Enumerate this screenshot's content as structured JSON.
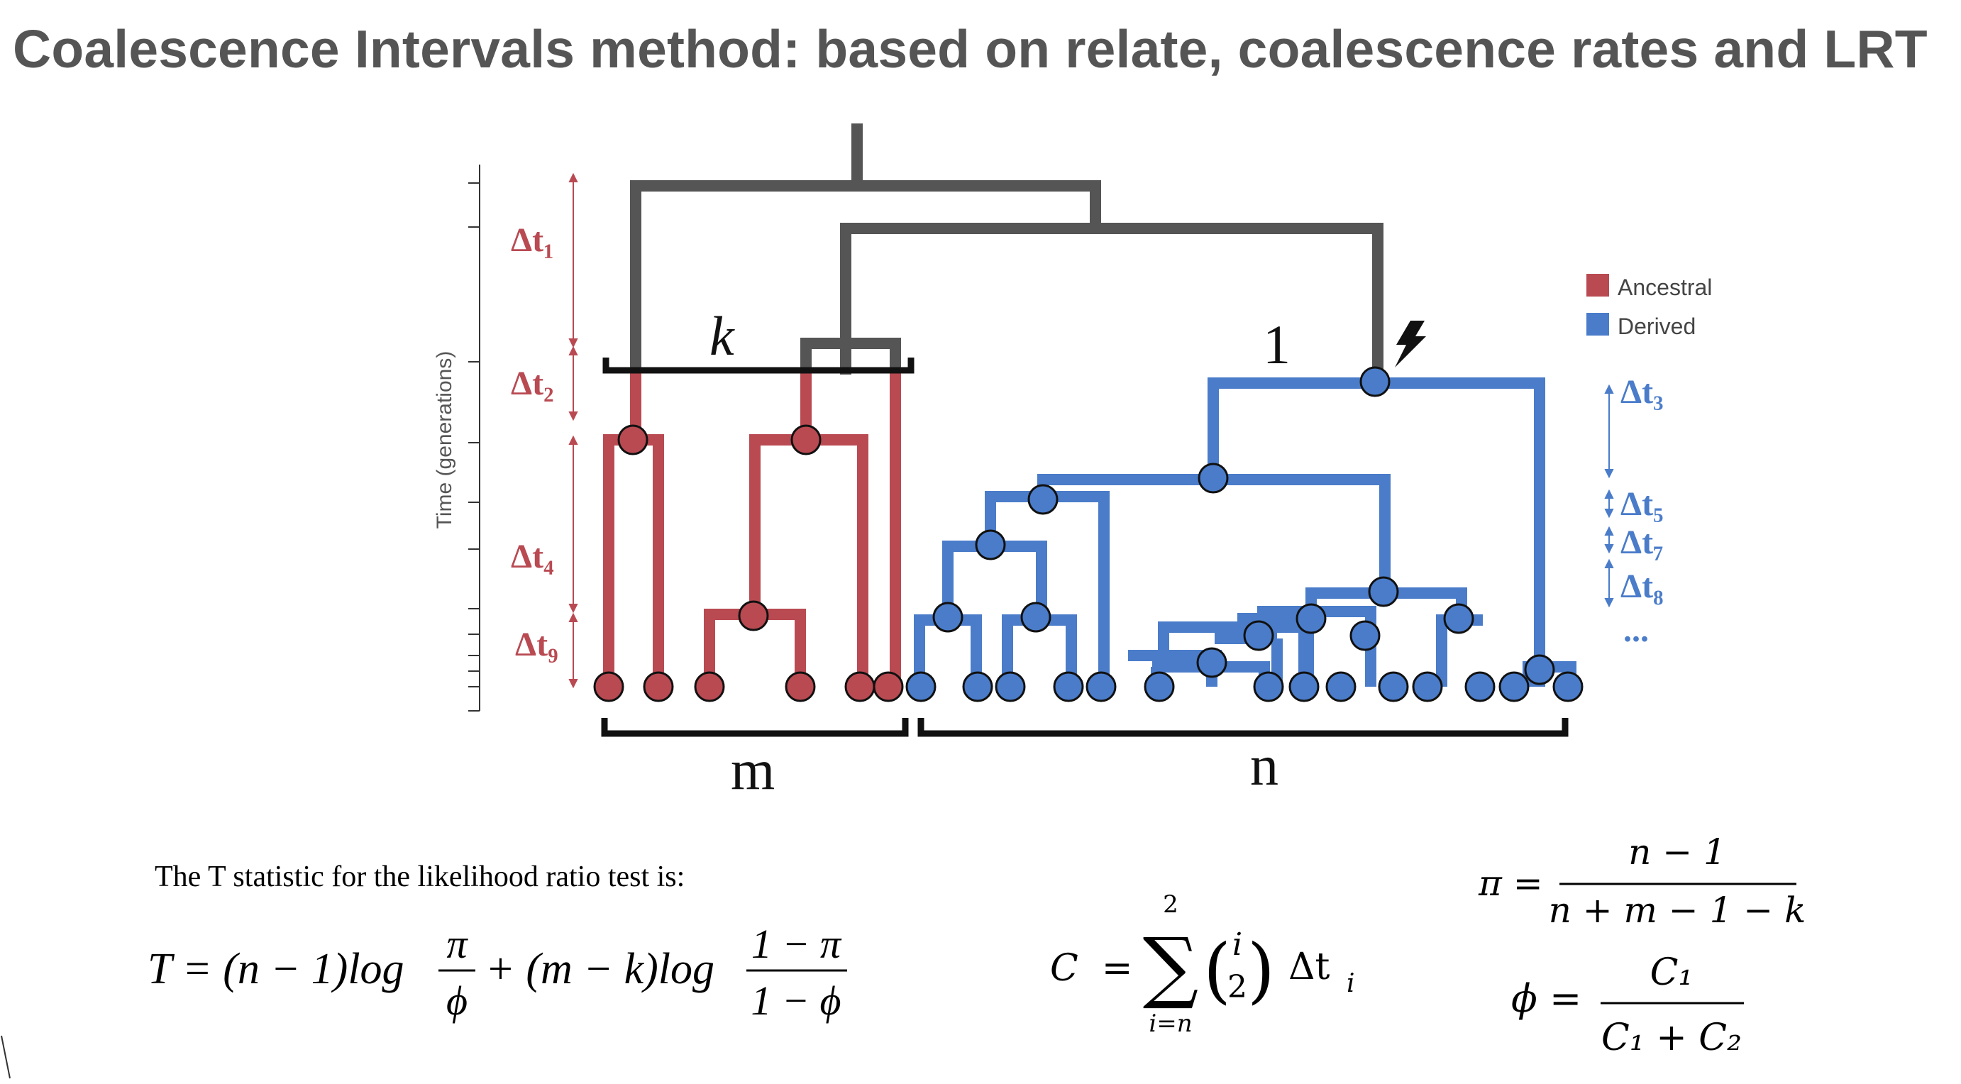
{
  "title": "Coalescence Intervals method: based on relate, coalescence rates and LRT",
  "axis_label": "Time (generations)",
  "legend": {
    "ancestral_label": "Ancestral",
    "derived_label": "Derived",
    "ancestral_color": "#b94a52",
    "derived_color": "#4a7cc9"
  },
  "tree_colors": {
    "ancestral": "#b94a52",
    "derived": "#4a7cc9",
    "root": "#555555"
  },
  "intervals_left": [
    "Δt₁",
    "Δt₂",
    "Δt₄",
    "Δt₉"
  ],
  "intervals_right": [
    "Δt₃",
    "Δt₅",
    "Δt₇",
    "Δt₈",
    "..."
  ],
  "labels": {
    "k": "k",
    "one": "1",
    "m": "m",
    "n": "n",
    "mutation_icon": "lightning-bolt-icon"
  },
  "equations": {
    "intro": "The T statistic for the likelihood ratio test is:",
    "t_stat": {
      "lhs": "T = (n − 1)log",
      "frac1_num": "π",
      "frac1_den": "ϕ",
      "middle": "+ (m − k)log",
      "frac2_num": "1 − π",
      "frac2_den": "1 − ϕ"
    },
    "c_def": {
      "lhs": "C  =",
      "sum_top": "2",
      "sum_bottom": "i=n",
      "binom_top": "i",
      "binom_bottom": "2",
      "term": "Δt",
      "sub": "i"
    },
    "pi_def": {
      "lhs": "π =",
      "num": "n − 1",
      "den": "n + m − 1 − k"
    },
    "phi_def": {
      "lhs": "ϕ =",
      "num": "C₁",
      "den": "C₁ + C₂"
    }
  }
}
